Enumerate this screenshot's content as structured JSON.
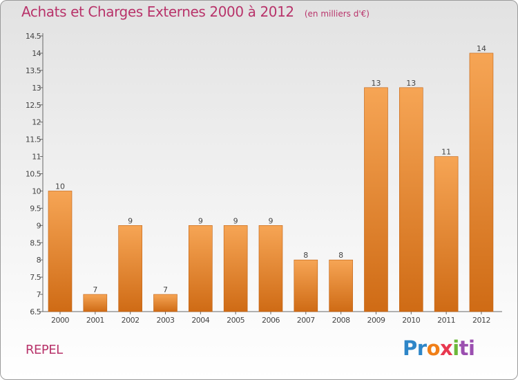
{
  "chart_data": {
    "type": "bar",
    "title": "Achats et Charges Externes 2000 à 2012",
    "unit": "(en milliers d'€)",
    "categories": [
      "2000",
      "2001",
      "2002",
      "2003",
      "2004",
      "2005",
      "2006",
      "2007",
      "2008",
      "2009",
      "2010",
      "2011",
      "2012"
    ],
    "values": [
      10,
      7,
      9,
      7,
      9,
      9,
      9,
      8,
      8,
      13,
      13,
      11,
      14
    ],
    "value_labels": [
      "10",
      "7",
      "9",
      "7",
      "9",
      "9",
      "9",
      "8",
      "8",
      "13",
      "13",
      "11",
      "14"
    ],
    "ylim": [
      6.5,
      14.5
    ],
    "yticks": [
      6.5,
      7,
      7.5,
      8,
      8.5,
      9,
      9.5,
      10,
      10.5,
      11,
      11.5,
      12,
      12.5,
      13,
      13.5,
      14,
      14.5
    ],
    "ytick_labels": [
      "6.5",
      "7",
      "7.5",
      "8",
      "8.5",
      "9",
      "9.5",
      "10",
      "10.5",
      "11",
      "11.5",
      "12",
      "12.5",
      "13",
      "13.5",
      "14",
      "14.5"
    ],
    "grid": false,
    "colors": {
      "bar_top": "#f6a555",
      "bar_bottom": "#cf6b15",
      "bar_edge": "#c06010",
      "text": "#b8336a",
      "axis": "#666666"
    }
  },
  "place_label": "REPEL",
  "brand": {
    "p1": "Pr",
    "p2": "o",
    "p3": "x",
    "p4": "i",
    "p5": "ti"
  }
}
